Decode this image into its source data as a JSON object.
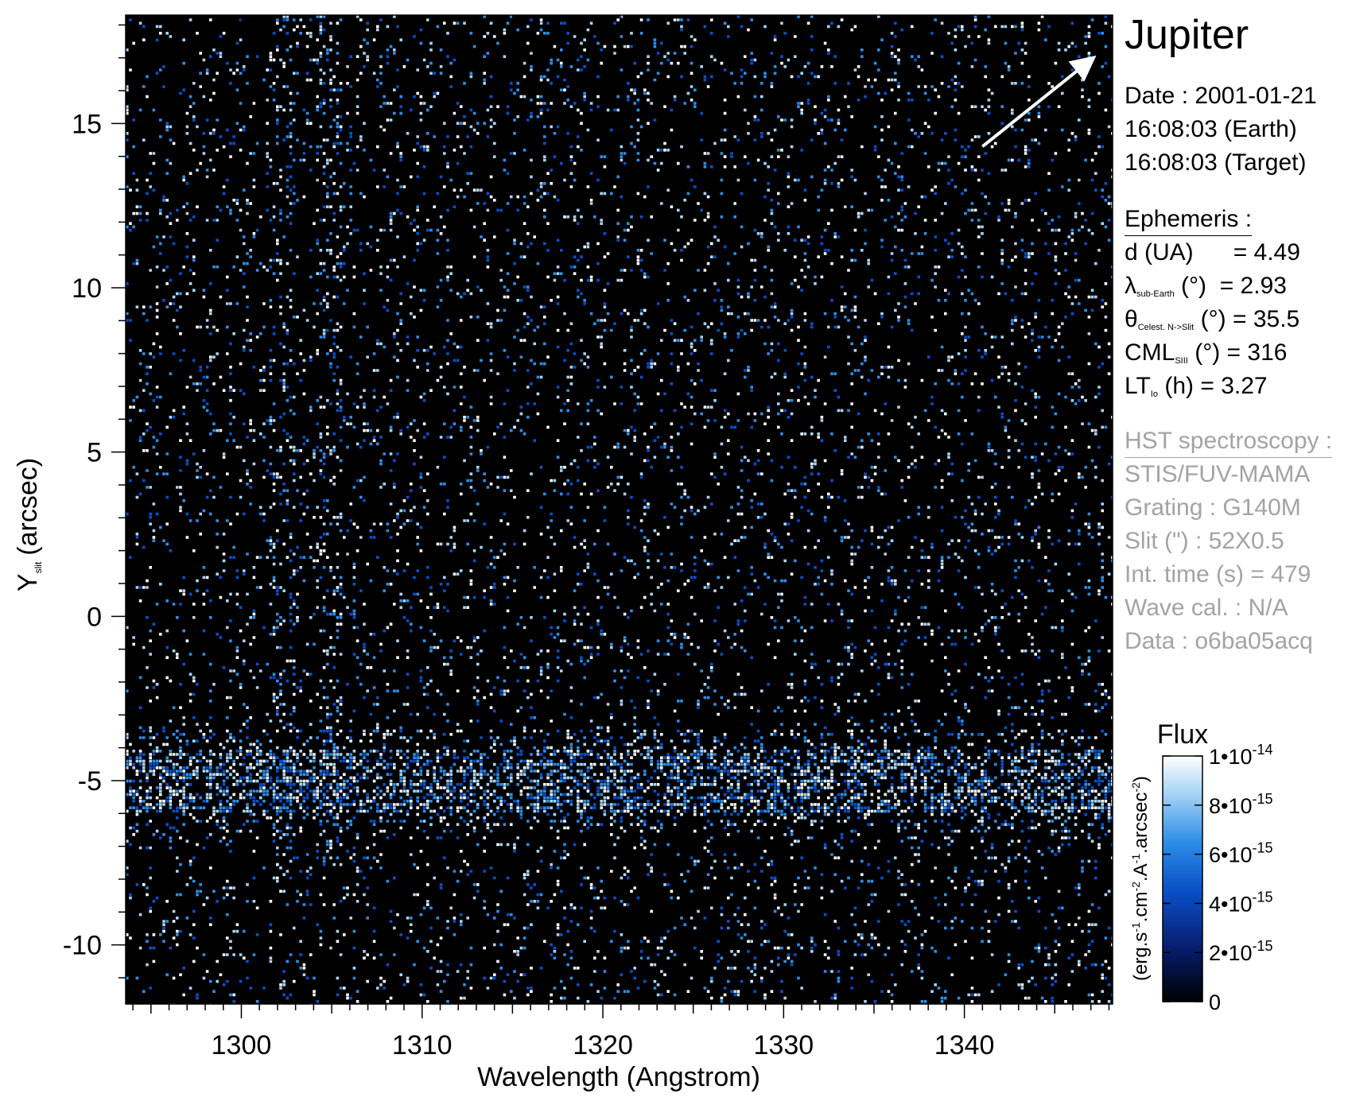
{
  "chart_data": {
    "type": "heatmap",
    "xlabel": "Wavelength (Angstrom)",
    "ylabel_main": "Y",
    "ylabel_sub": "slit",
    "ylabel_unit": "(arcsec)",
    "xlim": [
      1293.6,
      1348.2
    ],
    "ylim": [
      -11.8,
      18.3
    ],
    "x_ticks": [
      1300,
      1310,
      1320,
      1330,
      1340
    ],
    "x_tick_labels": [
      "1300",
      "1310",
      "1320",
      "1330",
      "1340"
    ],
    "y_ticks": [
      -10,
      -5,
      0,
      5,
      10,
      15
    ],
    "y_tick_labels": [
      "-10",
      "-5",
      "0",
      "5",
      "10",
      "15"
    ],
    "features": [
      {
        "kind": "horizontal_band",
        "y_center": -5.0,
        "y_width": 1.2,
        "x_range": [
          1293.6,
          1348.2
        ]
      },
      {
        "kind": "vertical_band",
        "x_center": 1302.2,
        "x_width": 0.8
      },
      {
        "kind": "vertical_band",
        "x_center": 1304.8,
        "x_width": 0.8
      }
    ],
    "arrow": {
      "from": [
        1341.0,
        14.3
      ],
      "to": [
        1347.0,
        16.9
      ]
    },
    "colorbar": {
      "title": "Flux",
      "unit_label": "(erg.s-1.cm-2.A-1.arcsec-2)",
      "range": [
        0,
        1e-14
      ],
      "ticks": [
        {
          "value": 1e-14,
          "mantissa": "1•10",
          "exp": "-14"
        },
        {
          "value": 8e-15,
          "mantissa": "8•10",
          "exp": "-15"
        },
        {
          "value": 6e-15,
          "mantissa": "6•10",
          "exp": "-15"
        },
        {
          "value": 4e-15,
          "mantissa": "4•10",
          "exp": "-15"
        },
        {
          "value": 2e-15,
          "mantissa": "2•10",
          "exp": "-15"
        },
        {
          "value": 0,
          "mantissa": "0",
          "exp": ""
        }
      ],
      "colors": [
        "#000000",
        "#071a66",
        "#0a4fc8",
        "#2e8ee6",
        "#a8d4f5",
        "#ffffff"
      ]
    }
  },
  "target": "Jupiter",
  "date": {
    "line1": "Date : 2001-01-21",
    "line2": "16:08:03 (Earth)",
    "line3": "16:08:03 (Target)"
  },
  "ephemeris": {
    "header": "Ephemeris :",
    "d_label": "d (UA)",
    "d_value": "= 4.49",
    "lambda_symbol": "λ",
    "lambda_sub": "sub-Earth",
    "lambda_unit": "(°)",
    "lambda_value": "= 2.93",
    "theta_symbol": "θ",
    "theta_sub": "Celest. N->Slit",
    "theta_unit": "(°)",
    "theta_value": "= 35.5",
    "cml_label": "CML",
    "cml_sub": "SIII",
    "cml_unit": "(°)",
    "cml_value": "= 316",
    "lt_label": "LT",
    "lt_sub": "Io",
    "lt_unit": "(h)",
    "lt_value": "= 3.27"
  },
  "hst": {
    "header": "HST spectroscopy :",
    "instrument": "STIS/FUV-MAMA",
    "grating": "Grating : G140M",
    "slit": "Slit (\") : 52X0.5",
    "int_time": "Int. time (s) = 479",
    "wave_cal": "Wave cal. : N/A",
    "data": "Data : o6ba05acq"
  },
  "colors": {
    "background": "#ffffff",
    "plot_background": "#000000",
    "secondary_text": "#a3a3a3",
    "arrow": "#ffffff"
  }
}
